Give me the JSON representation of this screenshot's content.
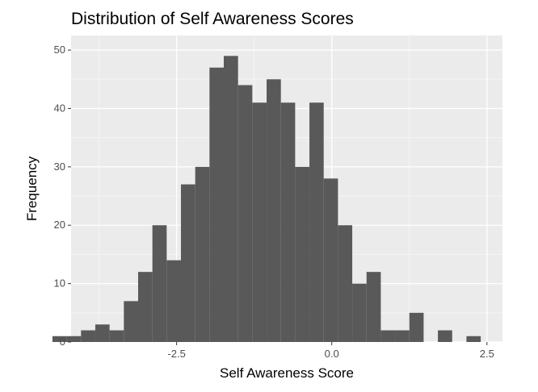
{
  "chart_data": {
    "type": "bar",
    "subtype": "histogram",
    "title": "Distribution of Self Awareness Scores",
    "xlabel": "Self Awareness Score",
    "ylabel": "Frequency",
    "xlim": [
      -4.2,
      2.75
    ],
    "ylim": [
      0,
      50
    ],
    "x_ticks": [
      -2.5,
      0.0,
      2.5
    ],
    "x_tick_labels": [
      "-2.5",
      "0.0",
      "2.5"
    ],
    "y_ticks": [
      0,
      10,
      20,
      30,
      40,
      50
    ],
    "y_tick_labels": [
      "0",
      "10",
      "20",
      "30",
      "40",
      "50"
    ],
    "grid": true,
    "legend": "none",
    "bins": [
      {
        "x0": -4.5,
        "x1": -4.27,
        "count": 1
      },
      {
        "x0": -4.27,
        "x1": -4.04,
        "count": 1
      },
      {
        "x0": -4.04,
        "x1": -3.81,
        "count": 2
      },
      {
        "x0": -3.81,
        "x1": -3.58,
        "count": 3
      },
      {
        "x0": -3.58,
        "x1": -3.35,
        "count": 2
      },
      {
        "x0": -3.35,
        "x1": -3.12,
        "count": 7
      },
      {
        "x0": -3.12,
        "x1": -2.89,
        "count": 12
      },
      {
        "x0": -2.89,
        "x1": -2.66,
        "count": 20
      },
      {
        "x0": -2.66,
        "x1": -2.43,
        "count": 14
      },
      {
        "x0": -2.43,
        "x1": -2.2,
        "count": 27
      },
      {
        "x0": -2.2,
        "x1": -1.97,
        "count": 30
      },
      {
        "x0": -1.97,
        "x1": -1.74,
        "count": 47
      },
      {
        "x0": -1.74,
        "x1": -1.51,
        "count": 49
      },
      {
        "x0": -1.51,
        "x1": -1.28,
        "count": 44
      },
      {
        "x0": -1.28,
        "x1": -1.05,
        "count": 41
      },
      {
        "x0": -1.05,
        "x1": -0.82,
        "count": 45
      },
      {
        "x0": -0.82,
        "x1": -0.59,
        "count": 41
      },
      {
        "x0": -0.59,
        "x1": -0.36,
        "count": 30
      },
      {
        "x0": -0.36,
        "x1": -0.13,
        "count": 41
      },
      {
        "x0": -0.13,
        "x1": 0.1,
        "count": 28
      },
      {
        "x0": 0.1,
        "x1": 0.33,
        "count": 20
      },
      {
        "x0": 0.33,
        "x1": 0.56,
        "count": 10
      },
      {
        "x0": 0.56,
        "x1": 0.79,
        "count": 12
      },
      {
        "x0": 0.79,
        "x1": 1.02,
        "count": 2
      },
      {
        "x0": 1.02,
        "x1": 1.25,
        "count": 2
      },
      {
        "x0": 1.25,
        "x1": 1.48,
        "count": 5
      },
      {
        "x0": 1.48,
        "x1": 1.71,
        "count": 0
      },
      {
        "x0": 1.71,
        "x1": 1.94,
        "count": 2
      },
      {
        "x0": 1.94,
        "x1": 2.17,
        "count": 0
      },
      {
        "x0": 2.17,
        "x1": 2.4,
        "count": 1
      }
    ],
    "colors": {
      "bar": "#595959",
      "panel": "#ebebeb",
      "grid_major": "#ffffff",
      "grid_minor": "#f5f5f5",
      "tick_text": "#4d4d4d",
      "tick_mark": "#333333"
    }
  }
}
